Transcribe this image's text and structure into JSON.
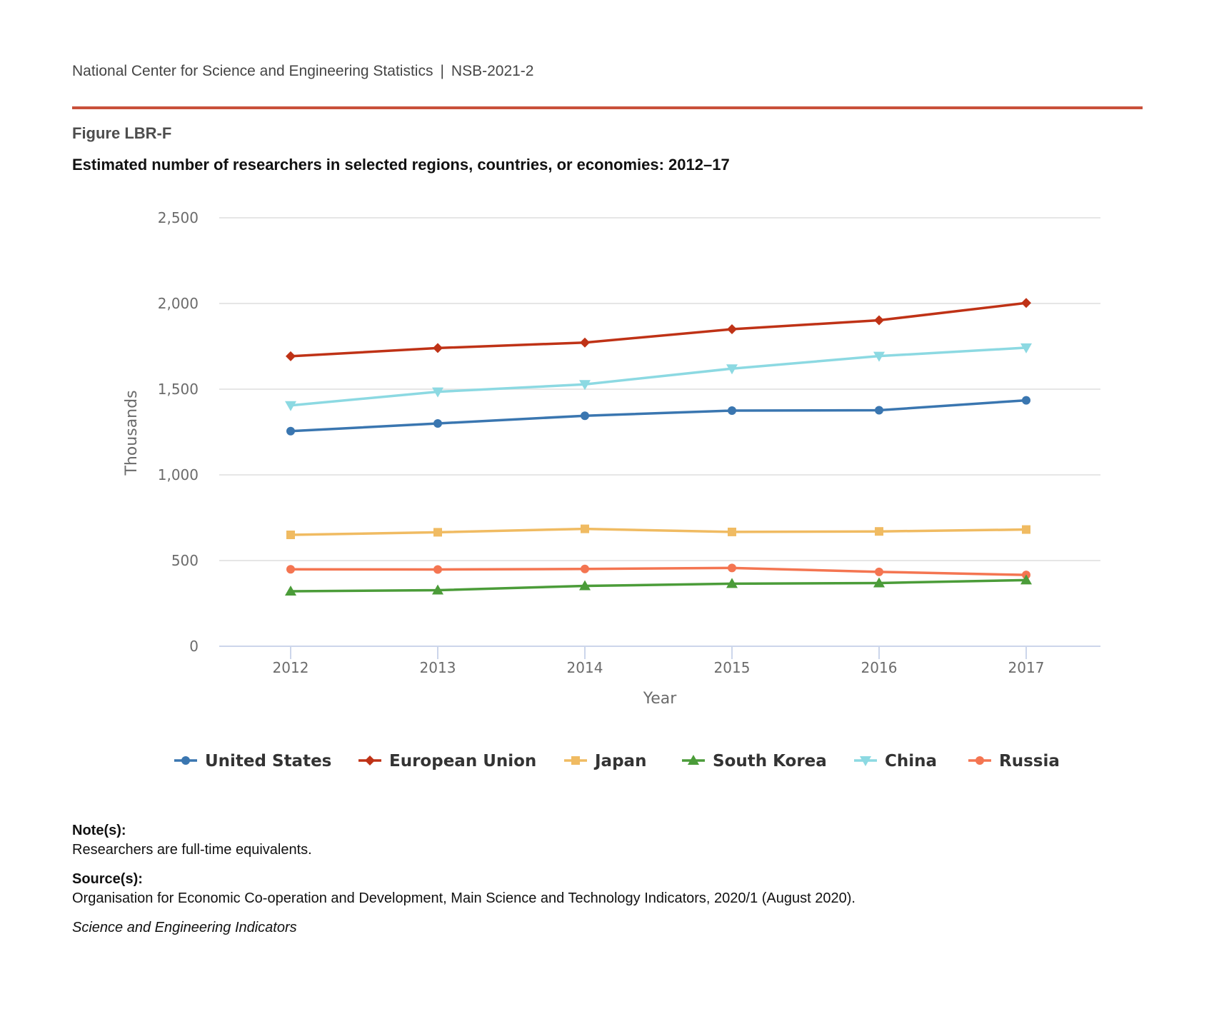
{
  "header": {
    "agency": "National Center for Science and Engineering Statistics",
    "separator": "|",
    "report_id": "NSB-2021-2"
  },
  "figure": {
    "id": "Figure LBR-F",
    "title": "Estimated number of researchers in selected regions, countries, or economies: 2012–17"
  },
  "footer": {
    "notes_label": "Note(s):",
    "notes_text": "Researchers are full-time equivalents.",
    "source_label": "Source(s):",
    "source_text": "Organisation for Economic Co-operation and Development, Main Science and Technology Indicators, 2020/1 (August 2020).",
    "publication": "Science and Engineering Indicators"
  },
  "chart_data": {
    "type": "line",
    "title": "Estimated number of researchers in selected regions, countries, or economies: 2012–17",
    "xlabel": "Year",
    "ylabel": "Thousands",
    "x": [
      2012,
      2013,
      2014,
      2015,
      2016,
      2017
    ],
    "x_tick_labels": [
      "2012",
      "2013",
      "2014",
      "2015",
      "2016",
      "2017"
    ],
    "ylim": [
      0,
      2500
    ],
    "y_ticks": [
      0,
      500,
      1000,
      1500,
      2000,
      2500
    ],
    "y_tick_labels": [
      "0",
      "500",
      "1,000",
      "1,500",
      "2,000",
      "2,500"
    ],
    "grid": true,
    "legend_position": "bottom",
    "series": [
      {
        "name": "United States",
        "color": "#3a76b0",
        "marker": "circle",
        "values": [
          1255,
          1300,
          1345,
          1375,
          1377,
          1435
        ]
      },
      {
        "name": "European Union",
        "color": "#bf3216",
        "marker": "diamond",
        "values": [
          1692,
          1740,
          1772,
          1850,
          1902,
          2003
        ]
      },
      {
        "name": "Japan",
        "color": "#f0bb62",
        "marker": "square",
        "values": [
          650,
          665,
          685,
          667,
          670,
          681
        ]
      },
      {
        "name": "South Korea",
        "color": "#4b9c39",
        "marker": "triangle-up",
        "values": [
          321,
          327,
          352,
          365,
          369,
          386
        ]
      },
      {
        "name": "China",
        "color": "#8cd9e2",
        "marker": "triangle-down",
        "values": [
          1405,
          1485,
          1528,
          1620,
          1693,
          1742
        ]
      },
      {
        "name": "Russia",
        "color": "#f47551",
        "marker": "circle",
        "values": [
          449,
          448,
          451,
          457,
          434,
          416
        ]
      }
    ]
  }
}
